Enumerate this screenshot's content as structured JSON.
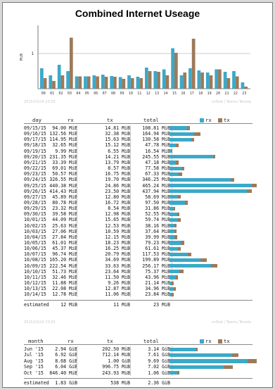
{
  "title": "Combined Internet Useage",
  "colors": {
    "rx": "#3ba9c9",
    "tx": "#9c7a59"
  },
  "hourly_chart": {
    "type": "bar",
    "ylabel": "MiB",
    "categories": [
      "00",
      "01",
      "02",
      "03",
      "04",
      "05",
      "06",
      "07",
      "08",
      "09",
      "10",
      "11",
      "12",
      "13",
      "14",
      "15",
      "16",
      "17",
      "18",
      "19",
      "20",
      "21",
      "22",
      "23"
    ],
    "series": [
      {
        "name": "rx",
        "values": [
          0.58,
          0.38,
          0.68,
          0.5,
          0.35,
          0.35,
          0.38,
          0.4,
          0.36,
          0.33,
          0.38,
          0.34,
          0.6,
          0.5,
          0.55,
          1.15,
          0.38,
          0.58,
          0.52,
          0.46,
          0.55,
          0.48,
          0.5,
          0.18
        ]
      },
      {
        "name": "tx",
        "values": [
          0.3,
          0.22,
          0.38,
          1.45,
          0.35,
          0.35,
          0.35,
          0.34,
          0.34,
          0.28,
          0.3,
          0.3,
          0.5,
          0.48,
          0.38,
          1.02,
          0.46,
          1.42,
          0.46,
          0.38,
          0.55,
          0.3,
          0.35,
          0.06
        ]
      }
    ],
    "ylim": [
      0,
      1.8
    ],
    "yticks": [
      "1"
    ],
    "grid": true
  },
  "watermark_left": "2015/10/14 23:55",
  "watermark_right": "vnStat / Teemu Toivola",
  "daily": {
    "headers": {
      "day": "day",
      "rx": "rx",
      "tx": "tx",
      "total": "total"
    },
    "legend": {
      "rx": "rx",
      "tx": "tx"
    },
    "rows": [
      {
        "day": "09/15/15",
        "rx": "94.00 MiB",
        "tx": "14.81 MiB",
        "total": "108.81 MiB",
        "rx_v": 94.0,
        "tx_v": 14.81
      },
      {
        "day": "09/16/15",
        "rx": "132.56 MiB",
        "tx": "32.38 MiB",
        "total": "164.94 MiB",
        "rx_v": 132.56,
        "tx_v": 32.38
      },
      {
        "day": "09/17/15",
        "rx": "114.95 MiB",
        "tx": "15.63 MiB",
        "total": "130.58 MiB",
        "rx_v": 114.95,
        "tx_v": 15.63
      },
      {
        "day": "09/18/15",
        "rx": "32.65 MiB",
        "tx": "15.12 MiB",
        "total": "47.78 MiB",
        "rx_v": 32.65,
        "tx_v": 15.12
      },
      {
        "day": "09/19/15",
        "rx": "9.99 MiB",
        "tx": "6.55 MiB",
        "total": "16.54 MiB",
        "rx_v": 9.99,
        "tx_v": 6.55
      },
      {
        "day": "09/20/15",
        "rx": "231.35 MiB",
        "tx": "14.21 MiB",
        "total": "245.55 MiB",
        "rx_v": 231.35,
        "tx_v": 14.21
      },
      {
        "day": "09/21/15",
        "rx": "33.39 MiB",
        "tx": "13.79 MiB",
        "total": "47.18 MiB",
        "rx_v": 33.39,
        "tx_v": 13.79
      },
      {
        "day": "09/22/15",
        "rx": "69.01 MiB",
        "tx": "8.57 MiB",
        "total": "77.58 MiB",
        "rx_v": 69.01,
        "tx_v": 8.57
      },
      {
        "day": "09/23/15",
        "rx": "50.57 MiB",
        "tx": "16.75 MiB",
        "total": "67.33 MiB",
        "rx_v": 50.57,
        "tx_v": 16.75
      },
      {
        "day": "09/24/15",
        "rx": "326.55 MiB",
        "tx": "19.70 MiB",
        "total": "346.25 MiB",
        "rx_v": 326.55,
        "tx_v": 19.7
      },
      {
        "day": "09/25/15",
        "rx": "440.38 MiB",
        "tx": "24.86 MiB",
        "total": "465.24 MiB",
        "rx_v": 440.38,
        "tx_v": 24.86
      },
      {
        "day": "09/26/15",
        "rx": "414.43 MiB",
        "tx": "23.50 MiB",
        "total": "437.94 MiB",
        "rx_v": 414.43,
        "tx_v": 23.5
      },
      {
        "day": "09/27/15",
        "rx": "45.89 MiB",
        "tx": "12.80 MiB",
        "total": "58.69 MiB",
        "rx_v": 45.89,
        "tx_v": 12.8
      },
      {
        "day": "09/28/15",
        "rx": "80.78 MiB",
        "tx": "16.72 MiB",
        "total": "97.50 MiB",
        "rx_v": 80.78,
        "tx_v": 16.72
      },
      {
        "day": "09/29/15",
        "rx": "23.32 MiB",
        "tx": "8.54 MiB",
        "total": "31.86 MiB",
        "rx_v": 23.32,
        "tx_v": 8.54
      },
      {
        "day": "09/30/15",
        "rx": "39.58 MiB",
        "tx": "12.98 MiB",
        "total": "52.55 MiB",
        "rx_v": 39.58,
        "tx_v": 12.98
      },
      {
        "day": "10/01/15",
        "rx": "44.09 MiB",
        "tx": "15.65 MiB",
        "total": "59.74 MiB",
        "rx_v": 44.09,
        "tx_v": 15.65
      },
      {
        "day": "10/02/15",
        "rx": "25.63 MiB",
        "tx": "12.53 MiB",
        "total": "38.16 MiB",
        "rx_v": 25.63,
        "tx_v": 12.53
      },
      {
        "day": "10/03/15",
        "rx": "27.06 MiB",
        "tx": "10.59 MiB",
        "total": "37.64 MiB",
        "rx_v": 27.06,
        "tx_v": 10.59
      },
      {
        "day": "10/04/15",
        "rx": "27.84 MiB",
        "tx": "12.15 MiB",
        "total": "39.99 MiB",
        "rx_v": 27.84,
        "tx_v": 12.15
      },
      {
        "day": "10/05/15",
        "rx": "61.01 MiB",
        "tx": "18.23 MiB",
        "total": "79.23 MiB",
        "rx_v": 61.01,
        "tx_v": 18.23
      },
      {
        "day": "10/06/15",
        "rx": "45.37 MiB",
        "tx": "16.25 MiB",
        "total": "61.61 MiB",
        "rx_v": 45.37,
        "tx_v": 16.25
      },
      {
        "day": "10/07/15",
        "rx": "96.74 MiB",
        "tx": "20.79 MiB",
        "total": "117.53 MiB",
        "rx_v": 96.74,
        "tx_v": 20.79
      },
      {
        "day": "10/08/15",
        "rx": "165.20 MiB",
        "tx": "34.69 MiB",
        "total": "199.89 MiB",
        "rx_v": 165.2,
        "tx_v": 34.69
      },
      {
        "day": "10/09/15",
        "rx": "222.54 MiB",
        "tx": "33.63 MiB",
        "total": "256.17 MiB",
        "rx_v": 222.54,
        "tx_v": 33.63
      },
      {
        "day": "10/10/15",
        "rx": "51.73 MiB",
        "tx": "23.64 MiB",
        "total": "75.37 MiB",
        "rx_v": 51.73,
        "tx_v": 23.64
      },
      {
        "day": "10/11/15",
        "rx": "32.46 MiB",
        "tx": "11.50 MiB",
        "total": "43.96 MiB",
        "rx_v": 32.46,
        "tx_v": 11.5
      },
      {
        "day": "10/12/15",
        "rx": "11.88 MiB",
        "tx": "9.26 MiB",
        "total": "21.14 MiB",
        "rx_v": 11.88,
        "tx_v": 9.26
      },
      {
        "day": "10/13/15",
        "rx": "22.08 MiB",
        "tx": "12.87 MiB",
        "total": "34.96 MiB",
        "rx_v": 22.08,
        "tx_v": 12.87
      },
      {
        "day": "10/14/15",
        "rx": "12.78 MiB",
        "tx": "11.06 MiB",
        "total": "23.84 MiB",
        "rx_v": 12.78,
        "tx_v": 11.06
      }
    ],
    "estimated": {
      "label": "estimated",
      "rx": "12 MiB",
      "tx": "11 MiB",
      "total": "23 MiB"
    }
  },
  "monthly": {
    "headers": {
      "month": "month",
      "rx": "rx",
      "tx": "tx",
      "total": "total"
    },
    "legend": {
      "rx": "rx",
      "tx": "tx"
    },
    "rows": [
      {
        "month": "Jun '15",
        "rx": "2.94 GiB",
        "tx": "202.50 MiB",
        "total": "3.14 GiB",
        "rx_v": 2.94,
        "tx_v": 0.198
      },
      {
        "month": "Jul '15",
        "rx": "6.92 GiB",
        "tx": "712.14 MiB",
        "total": "7.61 GiB",
        "rx_v": 6.92,
        "tx_v": 0.695
      },
      {
        "month": "Aug '15",
        "rx": "8.68 GiB",
        "tx": "1.00 GiB",
        "total": "9.69 GiB",
        "rx_v": 8.68,
        "tx_v": 1.0
      },
      {
        "month": "Sep '15",
        "rx": "6.04 GiB",
        "tx": "996.75 MiB",
        "total": "7.02 GiB",
        "rx_v": 6.04,
        "tx_v": 0.973
      },
      {
        "month": "Oct '15",
        "rx": "846.40 MiB",
        "tx": "243.93 MiB",
        "total": "1.06 GiB",
        "rx_v": 0.827,
        "tx_v": 0.238
      }
    ],
    "estimated": {
      "label": "estimated",
      "rx": "1.83 GiB",
      "tx": "538 MiB",
      "total": "2.36 GiB"
    }
  }
}
